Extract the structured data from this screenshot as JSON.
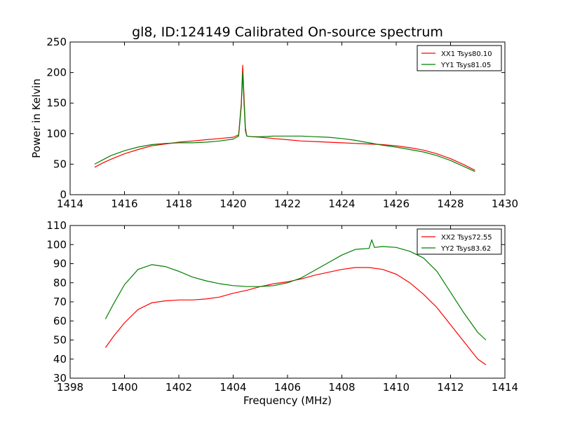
{
  "chart_data": [
    {
      "type": "line",
      "title": "gl8, ID:124149 Calibrated On-source spectrum",
      "xlabel": "",
      "ylabel": "Power in Kelvin",
      "xlim": [
        1414,
        1430
      ],
      "ylim": [
        0,
        250
      ],
      "xticks": [
        "1414",
        "1416",
        "1418",
        "1420",
        "1422",
        "1424",
        "1426",
        "1428",
        "1430"
      ],
      "yticks": [
        "0",
        "50",
        "100",
        "150",
        "200",
        "250"
      ],
      "grid": false,
      "legend_position": "top-right",
      "series": [
        {
          "name": "XX1 Tsys80.10",
          "color": "#ff0000",
          "x": [
            1414.9,
            1415.2,
            1415.5,
            1416,
            1416.5,
            1417,
            1417.5,
            1418,
            1418.5,
            1419,
            1419.5,
            1420,
            1420.2,
            1420.3,
            1420.35,
            1420.4,
            1420.45,
            1420.5,
            1420.7,
            1421,
            1421.5,
            1422,
            1422.5,
            1423,
            1423.5,
            1424,
            1424.5,
            1425,
            1425.5,
            1426,
            1426.5,
            1427,
            1427.5,
            1428,
            1428.5,
            1428.9
          ],
          "y": [
            45,
            52,
            58,
            67,
            74,
            80,
            83,
            86,
            88,
            90,
            92,
            94,
            98,
            150,
            212,
            160,
            110,
            96,
            95,
            94,
            92,
            90,
            88,
            87,
            86,
            85,
            84,
            83,
            82,
            80,
            77,
            73,
            67,
            59,
            49,
            40
          ]
        },
        {
          "name": "YY1 Tsys81.05",
          "color": "#008000",
          "x": [
            1414.9,
            1415.2,
            1415.5,
            1416,
            1416.5,
            1417,
            1417.5,
            1418,
            1418.5,
            1419,
            1419.5,
            1420,
            1420.2,
            1420.3,
            1420.35,
            1420.4,
            1420.45,
            1420.5,
            1420.7,
            1421,
            1421.5,
            1422,
            1422.5,
            1423,
            1423.5,
            1424,
            1424.5,
            1425,
            1425.5,
            1426,
            1426.5,
            1427,
            1427.5,
            1428,
            1428.5,
            1428.9
          ],
          "y": [
            50,
            57,
            64,
            72,
            78,
            82,
            84,
            85,
            85,
            86,
            88,
            91,
            96,
            145,
            200,
            150,
            105,
            96,
            95,
            95,
            96,
            96,
            96,
            95,
            94,
            92,
            89,
            85,
            81,
            78,
            74,
            70,
            64,
            56,
            46,
            38
          ]
        }
      ]
    },
    {
      "type": "line",
      "title": "",
      "xlabel": "Frequency (MHz)",
      "ylabel": "",
      "xlim": [
        1398,
        1414
      ],
      "ylim": [
        30,
        110
      ],
      "xticks": [
        "1398",
        "1400",
        "1402",
        "1404",
        "1406",
        "1408",
        "1410",
        "1412",
        "1414"
      ],
      "yticks": [
        "30",
        "40",
        "50",
        "60",
        "70",
        "80",
        "90",
        "100",
        "110"
      ],
      "grid": false,
      "legend_position": "top-right",
      "series": [
        {
          "name": "XX2 Tsys72.55",
          "color": "#ff0000",
          "x": [
            1399.3,
            1399.6,
            1400,
            1400.5,
            1401,
            1401.5,
            1402,
            1402.5,
            1403,
            1403.5,
            1404,
            1404.5,
            1405,
            1405.5,
            1406,
            1406.5,
            1407,
            1407.5,
            1408,
            1408.5,
            1409,
            1409.5,
            1410,
            1410.5,
            1411,
            1411.5,
            1412,
            1412.5,
            1413,
            1413.3
          ],
          "y": [
            46,
            52,
            59,
            66,
            69.5,
            70.5,
            71,
            71,
            71.5,
            72.5,
            74.5,
            76,
            78,
            79.5,
            80.5,
            82,
            84,
            85.5,
            87,
            88,
            88,
            87,
            84.5,
            80,
            74,
            67,
            58,
            49,
            40,
            37
          ]
        },
        {
          "name": "YY2 Tsys83.62",
          "color": "#008000",
          "x": [
            1399.3,
            1399.6,
            1400,
            1400.5,
            1401,
            1401.5,
            1402,
            1402.5,
            1403,
            1403.5,
            1404,
            1404.5,
            1405,
            1405.5,
            1406,
            1406.5,
            1407,
            1407.5,
            1408,
            1408.5,
            1409,
            1409.1,
            1409.2,
            1409.5,
            1410,
            1410.5,
            1411,
            1411.5,
            1412,
            1412.5,
            1413,
            1413.3
          ],
          "y": [
            61,
            69,
            79,
            87,
            89.5,
            88.5,
            86,
            83,
            81,
            79.5,
            78.5,
            78,
            78,
            78.5,
            80,
            82.5,
            86.5,
            90.5,
            94.5,
            97.5,
            98,
            102.5,
            98.5,
            99,
            98.5,
            96.5,
            93,
            86,
            75,
            64,
            54,
            50
          ]
        }
      ]
    }
  ]
}
